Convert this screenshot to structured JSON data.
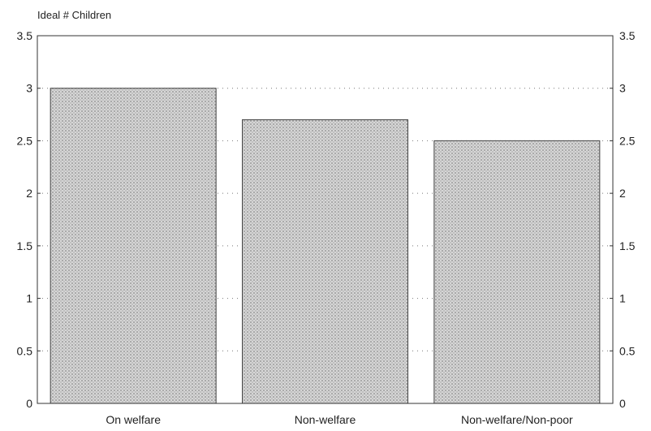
{
  "chart_data": {
    "type": "bar",
    "title": "",
    "xlabel": "",
    "ylabel": "Ideal # Children",
    "categories": [
      "On welfare",
      "Non-welfare",
      "Non-welfare/Non-poor"
    ],
    "values": [
      3.0,
      2.7,
      2.5
    ],
    "ylim": [
      0,
      3.5
    ],
    "yticks": [
      "0",
      "0.5",
      "1",
      "1.5",
      "2",
      "2.5",
      "3",
      "3.5"
    ],
    "grid": "dotted-horizontal",
    "legend": "none",
    "bar_color": "#bdbdbd"
  }
}
